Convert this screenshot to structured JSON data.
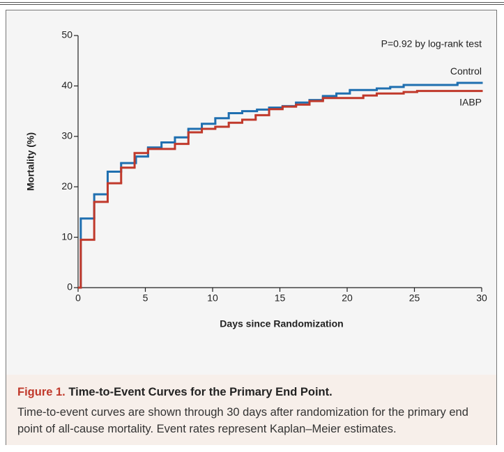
{
  "chart_data": {
    "type": "step",
    "annotation": "P=0.92 by log-rank test",
    "x_label": "Days since Randomization",
    "y_label": "Mortality (%)",
    "xlim": [
      0,
      30
    ],
    "xticks": [
      0,
      5,
      10,
      15,
      20,
      25,
      30
    ],
    "ylim": [
      0,
      50
    ],
    "yticks": [
      0,
      10,
      20,
      30,
      40,
      50
    ],
    "series": [
      {
        "name": "Control",
        "color": "#1f6fb0",
        "x": [
          0,
          0.2,
          1.2,
          2.2,
          3.2,
          4.3,
          5.2,
          6.2,
          7.2,
          8.2,
          9.2,
          10.2,
          11.2,
          12.2,
          13.3,
          14.2,
          15.2,
          16.2,
          17.2,
          18.2,
          19.2,
          20.2,
          22.2,
          23.2,
          24.2,
          28.2
        ],
        "values": [
          0,
          13.7,
          18.5,
          23,
          24.7,
          26,
          27.8,
          28.8,
          29.8,
          31.5,
          32.5,
          33.6,
          34.6,
          35,
          35.3,
          35.7,
          36,
          36.7,
          37.2,
          38,
          38.5,
          39.2,
          39.5,
          39.8,
          40.2,
          40.6
        ]
      },
      {
        "name": "IABP",
        "color": "#c0392b",
        "x": [
          0,
          0.2,
          1.2,
          2.2,
          3.2,
          4.2,
          5.2,
          7.2,
          8.2,
          9.2,
          10.2,
          11.2,
          12.2,
          13.2,
          14.2,
          15.2,
          16.2,
          17.2,
          18.2,
          21.2,
          22.2,
          24.2,
          25.2
        ],
        "values": [
          0,
          9.5,
          17,
          20.7,
          23.8,
          26.7,
          27.5,
          28.5,
          30.8,
          31.5,
          31.9,
          32.7,
          33.3,
          34.2,
          35.4,
          35.9,
          36.3,
          37,
          37.6,
          38.1,
          38.5,
          38.8,
          39
        ]
      }
    ]
  },
  "figure": {
    "label": "Figure 1.",
    "title": "Time-to-Event Curves for the Primary End Point.",
    "text": "Time-to-event curves are shown through 30 days after randomization for the primary end point of all-cause mortality. Event rates represent Kaplan–Meier estimates."
  }
}
